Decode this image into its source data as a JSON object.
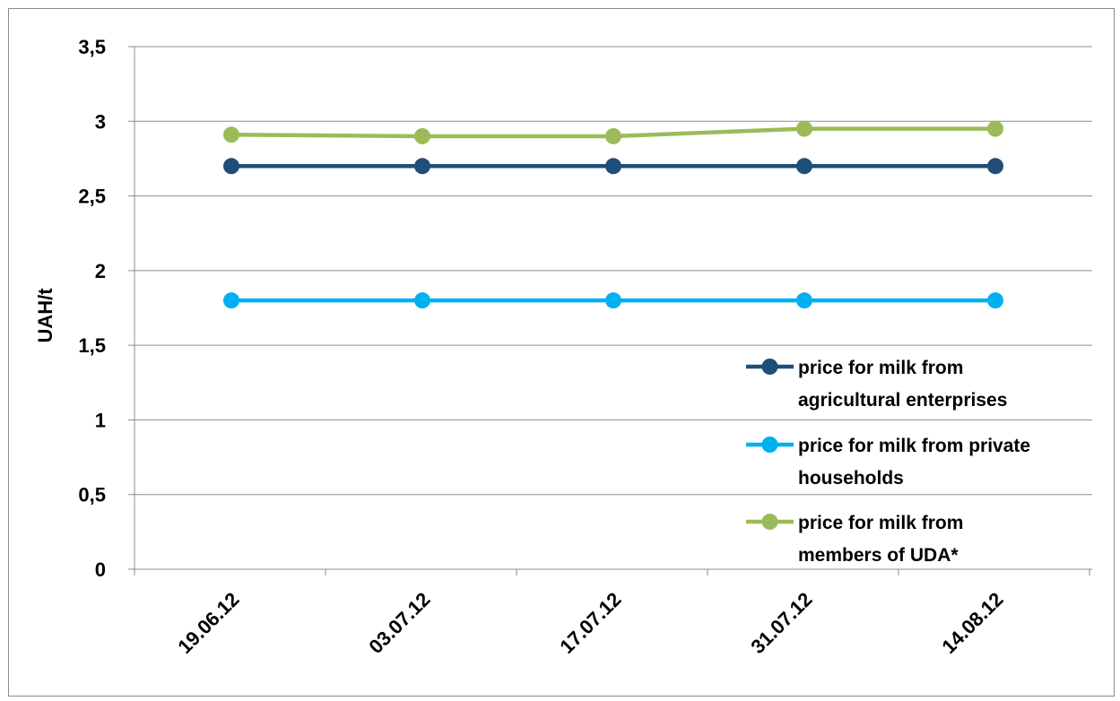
{
  "chart_data": {
    "type": "line",
    "title": "",
    "xlabel": "",
    "ylabel": "UAH/t",
    "categories": [
      "19.06.12",
      "03.07.12",
      "17.07.12",
      "31.07.12",
      "14.08.12"
    ],
    "ylim": [
      0,
      3.5
    ],
    "yticks": [
      0,
      0.5,
      1,
      1.5,
      2,
      2.5,
      3,
      3.5
    ],
    "ytick_labels": [
      "0",
      "0,5",
      "1",
      "1,5",
      "2",
      "2,5",
      "3",
      "3,5"
    ],
    "grid": true,
    "legend_position": "bottom-right",
    "series": [
      {
        "name_lines": [
          "price for milk from",
          "agricultural enterprises"
        ],
        "color": "#1f4e79",
        "values": [
          2.7,
          2.7,
          2.7,
          2.7,
          2.7
        ]
      },
      {
        "name_lines": [
          "price for milk from private",
          "households"
        ],
        "color": "#00b0f0",
        "values": [
          1.8,
          1.8,
          1.8,
          1.8,
          1.8
        ]
      },
      {
        "name_lines": [
          "price for milk from",
          "members of UDA*"
        ],
        "color": "#9bbb59",
        "values": [
          2.91,
          2.9,
          2.9,
          2.95,
          2.95
        ]
      }
    ]
  }
}
